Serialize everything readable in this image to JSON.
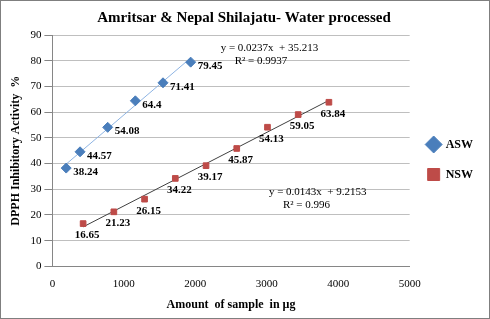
{
  "chart_data": {
    "type": "scatter",
    "title": "Amritsar & Nepal Shilajatu- Water processed",
    "x_label": "Amount  of sample  in µg",
    "y_label": "DPPH Inhibitory Activity  %",
    "xlim": [
      0,
      5000
    ],
    "xticks": [
      0,
      1000,
      2000,
      3000,
      4000,
      5000
    ],
    "ylim": [
      0,
      90
    ],
    "yticks": [
      0,
      10,
      20,
      30,
      40,
      50,
      60,
      70,
      80,
      90
    ],
    "grid": "y",
    "legend": "right",
    "data_labels": true,
    "series": [
      {
        "name": "ASW",
        "color": "#4a7ebb",
        "marker": "diamond",
        "x": [
          193,
          387,
          774,
          1161,
          1548,
          1935
        ],
        "values": [
          38.24,
          44.57,
          54.08,
          64.4,
          71.41,
          79.45
        ],
        "trendline": {
          "slope": 0.0237,
          "intercept": 35.213
        },
        "equation": "y = 0.0237x  + 35.213",
        "r2_label": "R² = 0.9937"
      },
      {
        "name": "NSW",
        "color": "#be4b48",
        "marker": "square",
        "x": [
          430,
          860,
          1290,
          1720,
          2150,
          2580,
          3010,
          3440,
          3870
        ],
        "values": [
          16.65,
          21.23,
          26.15,
          34.22,
          39.17,
          45.87,
          54.13,
          59.05,
          63.84
        ],
        "trendline": {
          "slope": 0.0143,
          "intercept": 9.2153
        },
        "equation": "y = 0.0143x  + 9.2153",
        "r2_label": "R² = 0.996"
      }
    ]
  }
}
